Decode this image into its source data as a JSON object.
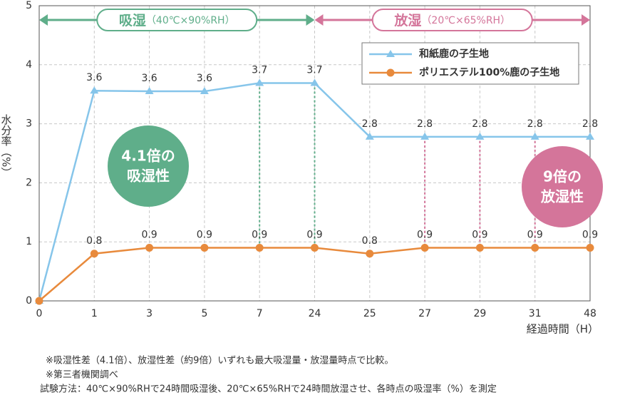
{
  "chart_data": {
    "type": "line",
    "x_label": "経過時間（H）",
    "y_label": "水分率（%）",
    "categories": [
      "0",
      "1",
      "3",
      "5",
      "7",
      "24",
      "25",
      "27",
      "29",
      "31",
      "48"
    ],
    "series": [
      {
        "name": "和紙鹿の子生地",
        "color": "#86c5ea",
        "marker": "triangle",
        "values": [
          0,
          3.56,
          3.55,
          3.55,
          3.69,
          3.69,
          2.78,
          2.78,
          2.78,
          2.78,
          2.78
        ],
        "value_labels": [
          null,
          "3.6",
          "3.6",
          "3.6",
          "3.7",
          "3.7",
          "2.8",
          "2.8",
          "2.8",
          "2.8",
          "2.8"
        ]
      },
      {
        "name": "ポリエステル100%鹿の子生地",
        "color": "#e88a3c",
        "marker": "circle",
        "values": [
          0,
          0.8,
          0.9,
          0.9,
          0.9,
          0.9,
          0.8,
          0.9,
          0.9,
          0.9,
          0.9
        ],
        "value_labels": [
          null,
          "0.8",
          "0.9",
          "0.9",
          "0.9",
          "0.9",
          "0.8",
          "0.9",
          "0.9",
          "0.9",
          "0.9"
        ]
      }
    ],
    "ylim": [
      0,
      5
    ],
    "yticks": [
      0,
      1,
      2,
      3,
      4,
      5
    ],
    "grid": true,
    "legend": "upper right",
    "phases": [
      {
        "name": "吸湿",
        "condition": "（40℃×90%RH）",
        "color": "#5fae8a",
        "from": 0,
        "to": 5,
        "links": [
          4,
          5
        ]
      },
      {
        "name": "放湿",
        "condition": "（20℃×65%RH）",
        "color": "#d4759a",
        "from": 5,
        "to": 10,
        "links": [
          7,
          8,
          9
        ]
      }
    ],
    "badges": [
      {
        "lines": [
          "4.1倍の",
          "吸湿性"
        ],
        "color": "#5fae8a"
      },
      {
        "lines": [
          "9倍の",
          "放湿性"
        ],
        "color": "#d4759a"
      }
    ],
    "notes": [
      "※吸湿性差（4.1倍）、放湿性差（約9倍）いずれも最大吸湿量・放湿量時点で比較。",
      "※第三者機関調べ",
      "試験方法：40℃×90%RHで24時間吸湿後、20℃×65%RHで24時間放湿させ、各時点の吸湿率（%）を測定"
    ]
  }
}
